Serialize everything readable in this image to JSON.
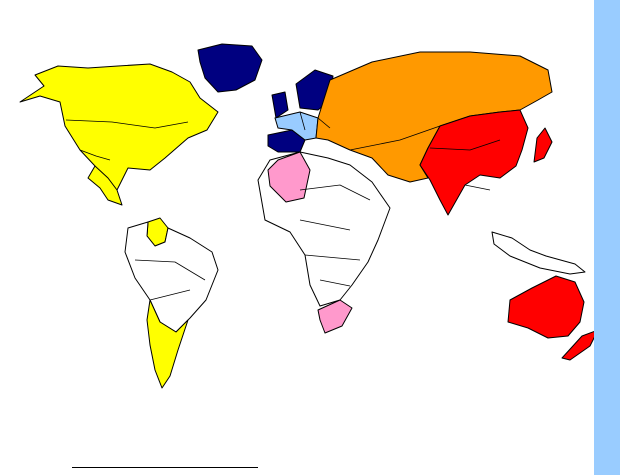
{
  "map": {
    "background": "#ffffff",
    "outline_color": "#000000",
    "legend": [],
    "regions": [
      {
        "id": "north-america",
        "fill_name": "yellow",
        "fill": "#ffff00"
      },
      {
        "id": "south-america-north",
        "fill_name": "yellow",
        "fill": "#ffff00"
      },
      {
        "id": "south-america-south",
        "fill_name": "yellow",
        "fill": "#ffff00"
      },
      {
        "id": "south-america-other",
        "fill_name": "white",
        "fill": "#ffffff"
      },
      {
        "id": "greenland",
        "fill_name": "navy",
        "fill": "#000080"
      },
      {
        "id": "northern-western-europe",
        "fill_name": "navy",
        "fill": "#000080"
      },
      {
        "id": "central-europe",
        "fill_name": "light-blue",
        "fill": "#99ccff"
      },
      {
        "id": "russia-central-asia-middle-east",
        "fill_name": "orange",
        "fill": "#ff9900"
      },
      {
        "id": "east-south-asia",
        "fill_name": "red",
        "fill": "#ff0000"
      },
      {
        "id": "japan",
        "fill_name": "red",
        "fill": "#ff0000"
      },
      {
        "id": "australia",
        "fill_name": "red",
        "fill": "#ff0000"
      },
      {
        "id": "new-zealand",
        "fill_name": "red",
        "fill": "#ff0000"
      },
      {
        "id": "north-africa",
        "fill_name": "pink",
        "fill": "#ff99cc"
      },
      {
        "id": "south-africa",
        "fill_name": "pink",
        "fill": "#ff99cc"
      },
      {
        "id": "africa-other",
        "fill_name": "white",
        "fill": "#ffffff"
      },
      {
        "id": "southeast-asia-islands",
        "fill_name": "white",
        "fill": "#ffffff"
      }
    ]
  },
  "side_strip": {
    "color": "#99ccff"
  },
  "footnote_rule": {
    "color": "#000000"
  }
}
